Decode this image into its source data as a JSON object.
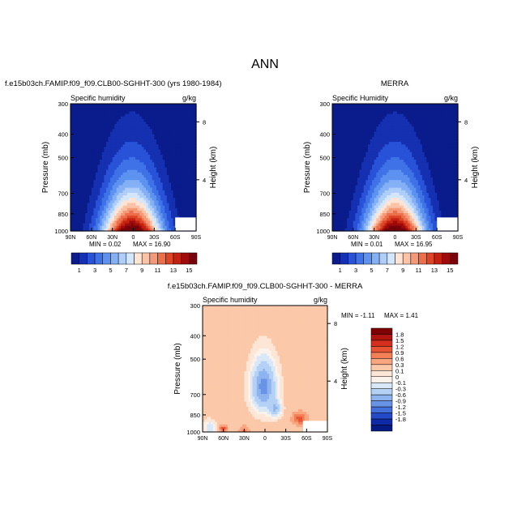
{
  "page_title": "ANN",
  "chart_data": [
    {
      "type": "heatmap",
      "title": "f.e15b03ch.FAMIP.f09_f09.CLB00-SGHHT-300 (yrs 1980-1984)",
      "variable_label": "Specific humidity",
      "units": "g/kg",
      "ylabel": "Pressure (mb)",
      "ylabel_right": "Height (km)",
      "x_ticks": [
        "90N",
        "60N",
        "30N",
        "0",
        "30S",
        "60S",
        "90S"
      ],
      "y_ticks": [
        "300",
        "400",
        "500",
        "700",
        "850",
        "1000"
      ],
      "y_right_ticks": [
        "8",
        "4"
      ],
      "ylim": [
        1000,
        300
      ],
      "xlim": [
        90,
        -90
      ],
      "stats": {
        "min_label": "MIN =",
        "min": "0.02",
        "max_label": "MAX =",
        "max": "16.90"
      },
      "colorbar": {
        "labels": [
          "1",
          "3",
          "5",
          "7",
          "9",
          "11",
          "13",
          "15"
        ],
        "colors": [
          "#0a1c8c",
          "#1530b0",
          "#2852d8",
          "#3e72e6",
          "#5d92f0",
          "#84b0f5",
          "#aecdf8",
          "#d4e6fb",
          "#fde4d4",
          "#fbc2a6",
          "#f59a78",
          "#ec6f4c",
          "#dc4527",
          "#c2220f",
          "#9e0b0a",
          "#78030a"
        ]
      }
    },
    {
      "type": "heatmap",
      "title": "MERRA",
      "variable_label": "Specific Humidity",
      "units": "g/kg",
      "ylabel": "Pressure (mb)",
      "ylabel_right": "Height (km)",
      "x_ticks": [
        "90N",
        "60N",
        "30N",
        "0",
        "30S",
        "60S",
        "90S"
      ],
      "y_ticks": [
        "300",
        "400",
        "500",
        "700",
        "850",
        "1000"
      ],
      "y_right_ticks": [
        "8",
        "4"
      ],
      "ylim": [
        1000,
        300
      ],
      "xlim": [
        90,
        -90
      ],
      "stats": {
        "min_label": "MIN =",
        "min": "0.01",
        "max_label": "MAX =",
        "max": "16.95"
      },
      "colorbar": {
        "labels": [
          "1",
          "3",
          "5",
          "7",
          "9",
          "11",
          "13",
          "15"
        ],
        "colors": [
          "#0a1c8c",
          "#1530b0",
          "#2852d8",
          "#3e72e6",
          "#5d92f0",
          "#84b0f5",
          "#aecdf8",
          "#d4e6fb",
          "#fde4d4",
          "#fbc2a6",
          "#f59a78",
          "#ec6f4c",
          "#dc4527",
          "#c2220f",
          "#9e0b0a",
          "#78030a"
        ]
      }
    },
    {
      "type": "heatmap",
      "title": "f.e15b03ch.FAMIP.f09_f09.CLB00-SGHHT-300 - MERRA",
      "variable_label": "Specific humidity",
      "units": "g/kg",
      "ylabel": "Pressure (mb)",
      "ylabel_right": "Height (km)",
      "x_ticks": [
        "90N",
        "60N",
        "30N",
        "0",
        "30S",
        "60S",
        "90S"
      ],
      "y_ticks": [
        "300",
        "400",
        "500",
        "700",
        "850",
        "1000"
      ],
      "y_right_ticks": [
        "8",
        "4"
      ],
      "ylim": [
        1000,
        300
      ],
      "xlim": [
        90,
        -90
      ],
      "stats": {
        "min_label": "MIN =",
        "min": "-1.11",
        "max_label": "MAX =",
        "max": "1.41"
      },
      "colorbar": {
        "labels": [
          "1.8",
          "1.5",
          "1.2",
          "0.9",
          "0.6",
          "0.3",
          "0.1",
          "0",
          "-0.1",
          "-0.3",
          "-0.6",
          "-0.9",
          "-1.2",
          "-1.5",
          "-1.8"
        ],
        "colors": [
          "#7f0000",
          "#b0140e",
          "#d42f1d",
          "#e85433",
          "#f47e56",
          "#f9a57f",
          "#fbc8a9",
          "#fde6d6",
          "#fcf2ec",
          "#d8e8f9",
          "#b4d0f4",
          "#8db4ee",
          "#6893e6",
          "#4470dc",
          "#254ac9",
          "#0f2aa8",
          "#051a82"
        ]
      }
    }
  ]
}
